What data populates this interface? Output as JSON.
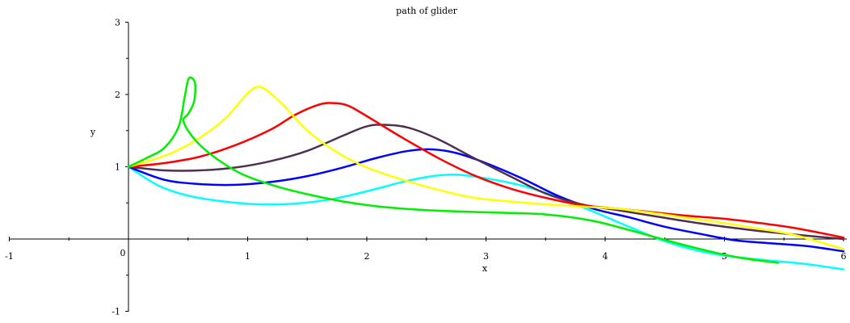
{
  "chart_data": {
    "type": "line",
    "title": "path of glider",
    "xlabel": "x",
    "ylabel": "y",
    "xlim": [
      -1,
      6
    ],
    "ylim": [
      -1,
      3
    ],
    "x_ticks": [
      -1,
      1,
      2,
      3,
      4,
      5,
      6
    ],
    "x_tick_labels": [
      "-1",
      "1",
      "2",
      "3",
      "4",
      "5",
      "6"
    ],
    "y_ticks": [
      -1,
      1,
      2,
      3
    ],
    "y_tick_labels": [
      "-1",
      "1",
      "2",
      "3"
    ],
    "origin_label": "0",
    "grid": false,
    "legend": "none",
    "series": [
      {
        "color": "#00ffff",
        "points": [
          [
            0,
            1
          ],
          [
            0.25,
            0.74
          ],
          [
            0.5,
            0.6
          ],
          [
            0.8,
            0.52
          ],
          [
            1.1,
            0.48
          ],
          [
            1.4,
            0.49
          ],
          [
            1.7,
            0.55
          ],
          [
            2.0,
            0.66
          ],
          [
            2.3,
            0.79
          ],
          [
            2.55,
            0.87
          ],
          [
            2.75,
            0.89
          ],
          [
            3.0,
            0.84
          ],
          [
            3.3,
            0.74
          ],
          [
            3.6,
            0.58
          ],
          [
            3.9,
            0.38
          ],
          [
            4.2,
            0.17
          ],
          [
            4.5,
            -0.03
          ],
          [
            4.8,
            -0.17
          ],
          [
            5.1,
            -0.25
          ],
          [
            5.4,
            -0.3
          ],
          [
            5.7,
            -0.35
          ],
          [
            6.0,
            -0.42
          ]
        ]
      },
      {
        "color": "#0000ff",
        "points": [
          [
            0,
            1
          ],
          [
            0.3,
            0.82
          ],
          [
            0.6,
            0.76
          ],
          [
            0.9,
            0.75
          ],
          [
            1.2,
            0.79
          ],
          [
            1.5,
            0.87
          ],
          [
            1.8,
            0.99
          ],
          [
            2.1,
            1.13
          ],
          [
            2.35,
            1.22
          ],
          [
            2.55,
            1.24
          ],
          [
            2.75,
            1.19
          ],
          [
            3.0,
            1.05
          ],
          [
            3.3,
            0.84
          ],
          [
            3.6,
            0.6
          ],
          [
            3.9,
            0.42
          ],
          [
            4.2,
            0.3
          ],
          [
            4.5,
            0.17
          ],
          [
            4.8,
            0.07
          ],
          [
            5.1,
            -0.02
          ],
          [
            5.4,
            -0.06
          ],
          [
            5.7,
            -0.1
          ],
          [
            6.0,
            -0.17
          ]
        ]
      },
      {
        "color": "#503050",
        "points": [
          [
            0,
            1
          ],
          [
            0.3,
            0.95
          ],
          [
            0.6,
            0.95
          ],
          [
            0.9,
            0.99
          ],
          [
            1.2,
            1.08
          ],
          [
            1.5,
            1.22
          ],
          [
            1.8,
            1.43
          ],
          [
            2.0,
            1.56
          ],
          [
            2.15,
            1.58
          ],
          [
            2.35,
            1.54
          ],
          [
            2.6,
            1.38
          ],
          [
            2.9,
            1.12
          ],
          [
            3.2,
            0.87
          ],
          [
            3.5,
            0.63
          ],
          [
            3.8,
            0.48
          ],
          [
            4.1,
            0.4
          ],
          [
            4.4,
            0.32
          ],
          [
            4.7,
            0.24
          ],
          [
            5.0,
            0.17
          ],
          [
            5.3,
            0.11
          ],
          [
            5.6,
            0.06
          ],
          [
            6.0,
            0.0
          ]
        ]
      },
      {
        "color": "#ff0000",
        "points": [
          [
            0,
            1
          ],
          [
            0.3,
            1.05
          ],
          [
            0.6,
            1.14
          ],
          [
            0.9,
            1.3
          ],
          [
            1.2,
            1.52
          ],
          [
            1.4,
            1.72
          ],
          [
            1.6,
            1.86
          ],
          [
            1.72,
            1.88
          ],
          [
            1.85,
            1.84
          ],
          [
            2.05,
            1.65
          ],
          [
            2.3,
            1.4
          ],
          [
            2.6,
            1.12
          ],
          [
            2.9,
            0.88
          ],
          [
            3.2,
            0.7
          ],
          [
            3.5,
            0.57
          ],
          [
            3.8,
            0.47
          ],
          [
            4.1,
            0.42
          ],
          [
            4.4,
            0.37
          ],
          [
            4.7,
            0.32
          ],
          [
            5.0,
            0.28
          ],
          [
            5.3,
            0.22
          ],
          [
            5.6,
            0.15
          ],
          [
            6.0,
            0.02
          ]
        ]
      },
      {
        "color": "#ffff00",
        "points": [
          [
            0,
            1
          ],
          [
            0.3,
            1.15
          ],
          [
            0.55,
            1.35
          ],
          [
            0.8,
            1.65
          ],
          [
            0.98,
            1.98
          ],
          [
            1.07,
            2.1
          ],
          [
            1.15,
            2.07
          ],
          [
            1.3,
            1.85
          ],
          [
            1.5,
            1.5
          ],
          [
            1.75,
            1.2
          ],
          [
            2.0,
            0.99
          ],
          [
            2.3,
            0.82
          ],
          [
            2.6,
            0.68
          ],
          [
            2.9,
            0.57
          ],
          [
            3.2,
            0.52
          ],
          [
            3.5,
            0.48
          ],
          [
            3.8,
            0.45
          ],
          [
            4.1,
            0.42
          ],
          [
            4.4,
            0.36
          ],
          [
            4.7,
            0.29
          ],
          [
            5.0,
            0.22
          ],
          [
            5.3,
            0.14
          ],
          [
            5.6,
            0.05
          ],
          [
            6.0,
            -0.14
          ]
        ]
      },
      {
        "color": "#00ee00",
        "points": [
          [
            0,
            1
          ],
          [
            0.15,
            1.12
          ],
          [
            0.3,
            1.26
          ],
          [
            0.42,
            1.55
          ],
          [
            0.47,
            1.95
          ],
          [
            0.5,
            2.2
          ],
          [
            0.53,
            2.23
          ],
          [
            0.56,
            2.14
          ],
          [
            0.55,
            1.9
          ],
          [
            0.5,
            1.73
          ],
          [
            0.46,
            1.65
          ],
          [
            0.5,
            1.5
          ],
          [
            0.6,
            1.3
          ],
          [
            0.75,
            1.1
          ],
          [
            0.95,
            0.9
          ],
          [
            1.2,
            0.75
          ],
          [
            1.5,
            0.62
          ],
          [
            1.8,
            0.52
          ],
          [
            2.1,
            0.45
          ],
          [
            2.5,
            0.4
          ],
          [
            3.0,
            0.37
          ],
          [
            3.5,
            0.34
          ],
          [
            3.9,
            0.25
          ],
          [
            4.3,
            0.08
          ],
          [
            4.7,
            -0.1
          ],
          [
            5.1,
            -0.25
          ],
          [
            5.45,
            -0.33
          ]
        ]
      }
    ]
  }
}
